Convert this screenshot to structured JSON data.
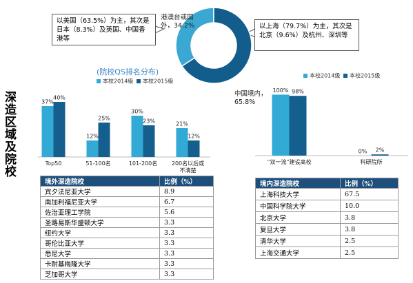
{
  "side_title": "深造区域及院校",
  "chart_data": [
    {
      "type": "pie",
      "values": [
        34.2,
        65.8
      ],
      "value_labels": [
        "港澳台或国外，34.2%",
        "中国境内，65.8%"
      ],
      "colors": [
        "#3aa8d2",
        "#135d8c"
      ],
      "annotations": [
        "以美国（63.5%）为主，其次是日本（8.3%）及英国、中国香港等",
        "以上海（79.7%）为主，其次是北京（9.6%）及杭州、深圳等"
      ]
    },
    {
      "type": "bar",
      "title": "(院校QS排名分布)",
      "categories": [
        "Top50",
        "51-100名",
        "101-200名",
        "200名以后或不清楚"
      ],
      "series": [
        {
          "name": "本校2014级",
          "color": "#33a9d6",
          "values": [
            37,
            12,
            30,
            21
          ],
          "value_labels": [
            "37%",
            "12%",
            "30%",
            "21%"
          ]
        },
        {
          "name": "本校2015级",
          "color": "#155f8f",
          "values": [
            40,
            25,
            23,
            12
          ],
          "value_labels": [
            "40%",
            "25%",
            "23%",
            "12%"
          ]
        }
      ],
      "ylim": [
        0,
        45
      ]
    },
    {
      "type": "bar",
      "categories": [
        "“双一流”建设高校",
        "科研院所"
      ],
      "series": [
        {
          "name": "本校2014级",
          "color": "#33a9d6",
          "values": [
            100,
            0
          ],
          "value_labels": [
            "100%",
            "0%"
          ]
        },
        {
          "name": "本校2015级",
          "color": "#155f8f",
          "values": [
            98,
            2
          ],
          "value_labels": [
            "98%",
            "2%"
          ]
        }
      ],
      "ylim": [
        0,
        105
      ]
    }
  ],
  "tables": [
    {
      "header": [
        "境外深造院校",
        "比例（%）"
      ],
      "rows": [
        [
          "宾夕法尼亚大学",
          "8.9"
        ],
        [
          "南加利福尼亚大学",
          "6.7"
        ],
        [
          "佐治亚理工学院",
          "5.6"
        ],
        [
          "圣路易斯华盛顿大学",
          "3.3"
        ],
        [
          "纽约大学",
          "3.3"
        ],
        [
          "哥伦比亚大学",
          "3.3"
        ],
        [
          "悉尼大学",
          "3.3"
        ],
        [
          "卡耐基梅隆大学",
          "3.3"
        ],
        [
          "芝加哥大学",
          "3.3"
        ]
      ]
    },
    {
      "header": [
        "境内深造院校",
        "比例（%）"
      ],
      "rows": [
        [
          "上海科技大学",
          "67.5"
        ],
        [
          "中国科学院大学",
          "10.0"
        ],
        [
          "北京大学",
          "3.8"
        ],
        [
          "复旦大学",
          "3.8"
        ],
        [
          "清华大学",
          "2.5"
        ],
        [
          "上海交通大学",
          "2.5"
        ]
      ]
    }
  ]
}
